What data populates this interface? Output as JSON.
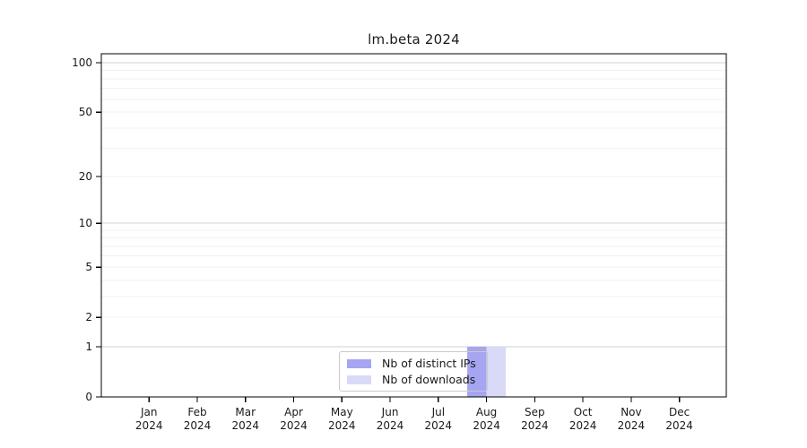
{
  "chart_data": {
    "type": "bar",
    "title": "lm.beta 2024",
    "x": {
      "months": [
        "Jan",
        "Feb",
        "Mar",
        "Apr",
        "May",
        "Jun",
        "Jul",
        "Aug",
        "Sep",
        "Oct",
        "Nov",
        "Dec"
      ],
      "year": "2024"
    },
    "series": [
      {
        "name": "Nb of distinct IPs",
        "color": "#a5a5f2",
        "values": [
          0,
          0,
          0,
          0,
          0,
          0,
          0,
          1,
          0,
          0,
          0,
          0
        ]
      },
      {
        "name": "Nb of downloads",
        "color": "#d9d9f8",
        "values": [
          0,
          0,
          0,
          0,
          0,
          0,
          0,
          1,
          0,
          0,
          0,
          0
        ]
      }
    ],
    "y_axis": {
      "scale": "log1p",
      "ticks": [
        0,
        1,
        2,
        5,
        10,
        20,
        50,
        100
      ],
      "max": 100
    },
    "grid": {
      "minor_values": [
        2,
        3,
        4,
        5,
        6,
        7,
        8,
        9,
        20,
        30,
        40,
        50,
        60,
        70,
        80,
        90
      ],
      "major_values": [
        1,
        10,
        100
      ],
      "minor_color": "#f1f1f1",
      "major_color": "#d2d2d2"
    },
    "legend": {
      "position": "inside-bottom-center"
    },
    "colors": {
      "axis": "#000000",
      "text": "#1a1a1a"
    }
  }
}
